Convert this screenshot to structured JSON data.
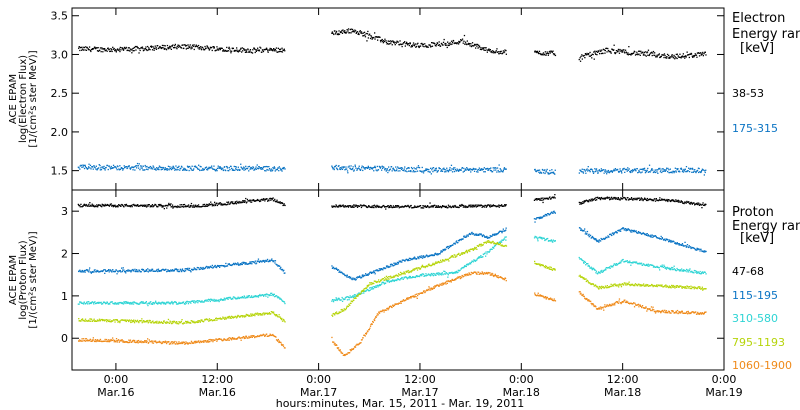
{
  "xlabel": "hours:minutes, Mar. 15, 2011 - Mar. 19, 2011",
  "x_ticks": [
    {
      "time": "0:00",
      "date": "Mar.16",
      "h": 0
    },
    {
      "time": "12:00",
      "date": "Mar.16",
      "h": 12
    },
    {
      "time": "0:00",
      "date": "Mar.17",
      "h": 24
    },
    {
      "time": "12:00",
      "date": "Mar.17",
      "h": 36
    },
    {
      "time": "0:00",
      "date": "Mar.18",
      "h": 48
    },
    {
      "time": "12:00",
      "date": "Mar.18",
      "h": 60
    },
    {
      "time": "0:00",
      "date": "Mar.19",
      "h": 72
    }
  ],
  "chart_data": [
    {
      "type": "scatter",
      "panel": "electron",
      "ylabel_lines": [
        "ACE EPAM",
        "log(Electron Flux)",
        "[1/(cm²s ster MeV)]"
      ],
      "ylim": [
        1.25,
        3.6
      ],
      "yticks": [
        "1.5",
        "2.0",
        "2.5",
        "3.0",
        "3.5"
      ],
      "xlim_hours": [
        -5.2,
        72
      ],
      "legend_title_lines": [
        "Electron",
        "Energy ranges",
        "[keV]"
      ],
      "series": [
        {
          "name": "38-53",
          "color": "#000000",
          "segments": [
            {
              "h": [
                -4.5,
                0,
                8,
                16,
                20
              ],
              "y": [
                3.08,
                3.07,
                3.11,
                3.06,
                3.07
              ]
            },
            {
              "h": [
                25.5,
                28,
                32,
                36,
                39,
                41,
                44,
                46.2
              ],
              "y": [
                3.28,
                3.32,
                3.17,
                3.12,
                3.15,
                3.18,
                3.06,
                3.04
              ]
            },
            {
              "h": [
                49.5,
                52
              ],
              "y": [
                3.03,
                3.02
              ]
            },
            {
              "h": [
                54.8,
                58,
                62,
                66,
                69.8
              ],
              "y": [
                2.97,
                3.06,
                3.02,
                2.98,
                3.01
              ]
            }
          ]
        },
        {
          "name": "175-315",
          "color": "#0a74c4",
          "segments": [
            {
              "h": [
                -4.5,
                8,
                20
              ],
              "y": [
                1.55,
                1.54,
                1.53
              ]
            },
            {
              "h": [
                25.5,
                36,
                46.2
              ],
              "y": [
                1.55,
                1.52,
                1.52
              ]
            },
            {
              "h": [
                49.5,
                52
              ],
              "y": [
                1.5,
                1.49
              ]
            },
            {
              "h": [
                54.8,
                62,
                69.8
              ],
              "y": [
                1.5,
                1.51,
                1.51
              ]
            }
          ]
        }
      ]
    },
    {
      "type": "scatter",
      "panel": "proton",
      "ylabel_lines": [
        "ACE EPAM",
        "log(Proton Flux)",
        "[1/(cm²s ster MeV)]"
      ],
      "ylim": [
        -0.75,
        3.5
      ],
      "yticks": [
        "0",
        "1",
        "2",
        "3"
      ],
      "xlim_hours": [
        -5.2,
        72
      ],
      "legend_title_lines": [
        "Proton",
        "Energy ranges",
        "[keV]"
      ],
      "series": [
        {
          "name": "47-68",
          "color": "#000000",
          "segments": [
            {
              "h": [
                -4.5,
                10,
                18.5,
                20
              ],
              "y": [
                3.15,
                3.14,
                3.3,
                3.15
              ]
            },
            {
              "h": [
                25.5,
                36,
                46.2
              ],
              "y": [
                3.14,
                3.12,
                3.14
              ]
            },
            {
              "h": [
                49.5,
                52
              ],
              "y": [
                3.28,
                3.34
              ]
            },
            {
              "h": [
                54.8,
                57,
                62,
                66,
                69.8
              ],
              "y": [
                3.2,
                3.32,
                3.3,
                3.26,
                3.15
              ]
            }
          ]
        },
        {
          "name": "115-195",
          "color": "#0a74c4",
          "segments": [
            {
              "h": [
                -4.5,
                8,
                18.5,
                20
              ],
              "y": [
                1.6,
                1.62,
                1.86,
                1.55
              ]
            },
            {
              "h": [
                25.5,
                28,
                31,
                34,
                38,
                42,
                44,
                46.2
              ],
              "y": [
                1.7,
                1.4,
                1.62,
                1.85,
                2.0,
                2.5,
                2.4,
                2.6
              ]
            },
            {
              "h": [
                49.5,
                52
              ],
              "y": [
                2.82,
                3.0
              ]
            },
            {
              "h": [
                54.8,
                57,
                60,
                64,
                69.8
              ],
              "y": [
                2.6,
                2.3,
                2.6,
                2.4,
                2.05
              ]
            }
          ]
        },
        {
          "name": "310-580",
          "color": "#2ed4d4",
          "segments": [
            {
              "h": [
                -4.5,
                8,
                18.5,
                20
              ],
              "y": [
                0.85,
                0.85,
                1.05,
                0.85
              ]
            },
            {
              "h": [
                25.5,
                28,
                32,
                36,
                40,
                44,
                46.2
              ],
              "y": [
                0.9,
                1.0,
                1.35,
                1.5,
                1.55,
                2.05,
                2.4
              ]
            },
            {
              "h": [
                49.5,
                52
              ],
              "y": [
                2.4,
                2.3
              ]
            },
            {
              "h": [
                54.8,
                57,
                60,
                64,
                69.8
              ],
              "y": [
                1.9,
                1.55,
                1.85,
                1.7,
                1.55
              ]
            }
          ]
        },
        {
          "name": "795-1193",
          "color": "#b6d40a",
          "segments": [
            {
              "h": [
                -4.5,
                8,
                18.5,
                20
              ],
              "y": [
                0.45,
                0.38,
                0.62,
                0.4
              ]
            },
            {
              "h": [
                25.5,
                27,
                30,
                34,
                38,
                42,
                44,
                46.2
              ],
              "y": [
                0.55,
                0.7,
                1.3,
                1.55,
                1.8,
                2.1,
                2.3,
                2.2
              ]
            },
            {
              "h": [
                49.5,
                52
              ],
              "y": [
                1.8,
                1.62
              ]
            },
            {
              "h": [
                54.8,
                57,
                60,
                64,
                69.8
              ],
              "y": [
                1.5,
                1.2,
                1.3,
                1.25,
                1.2
              ]
            }
          ]
        },
        {
          "name": "1060-1900",
          "color": "#ef8a1a",
          "segments": [
            {
              "h": [
                -4.5,
                8,
                18.5,
                20
              ],
              "y": [
                -0.02,
                -0.1,
                0.1,
                -0.22
              ]
            },
            {
              "h": [
                25.5,
                27,
                29,
                31,
                34,
                38,
                42,
                44,
                46.2
              ],
              "y": [
                -0.05,
                -0.4,
                -0.05,
                0.6,
                0.9,
                1.25,
                1.55,
                1.55,
                1.4
              ]
            },
            {
              "h": [
                49.5,
                52
              ],
              "y": [
                1.05,
                0.9
              ]
            },
            {
              "h": [
                54.8,
                57,
                60,
                64,
                69.8
              ],
              "y": [
                1.1,
                0.7,
                0.9,
                0.65,
                0.6
              ]
            }
          ]
        }
      ]
    }
  ]
}
